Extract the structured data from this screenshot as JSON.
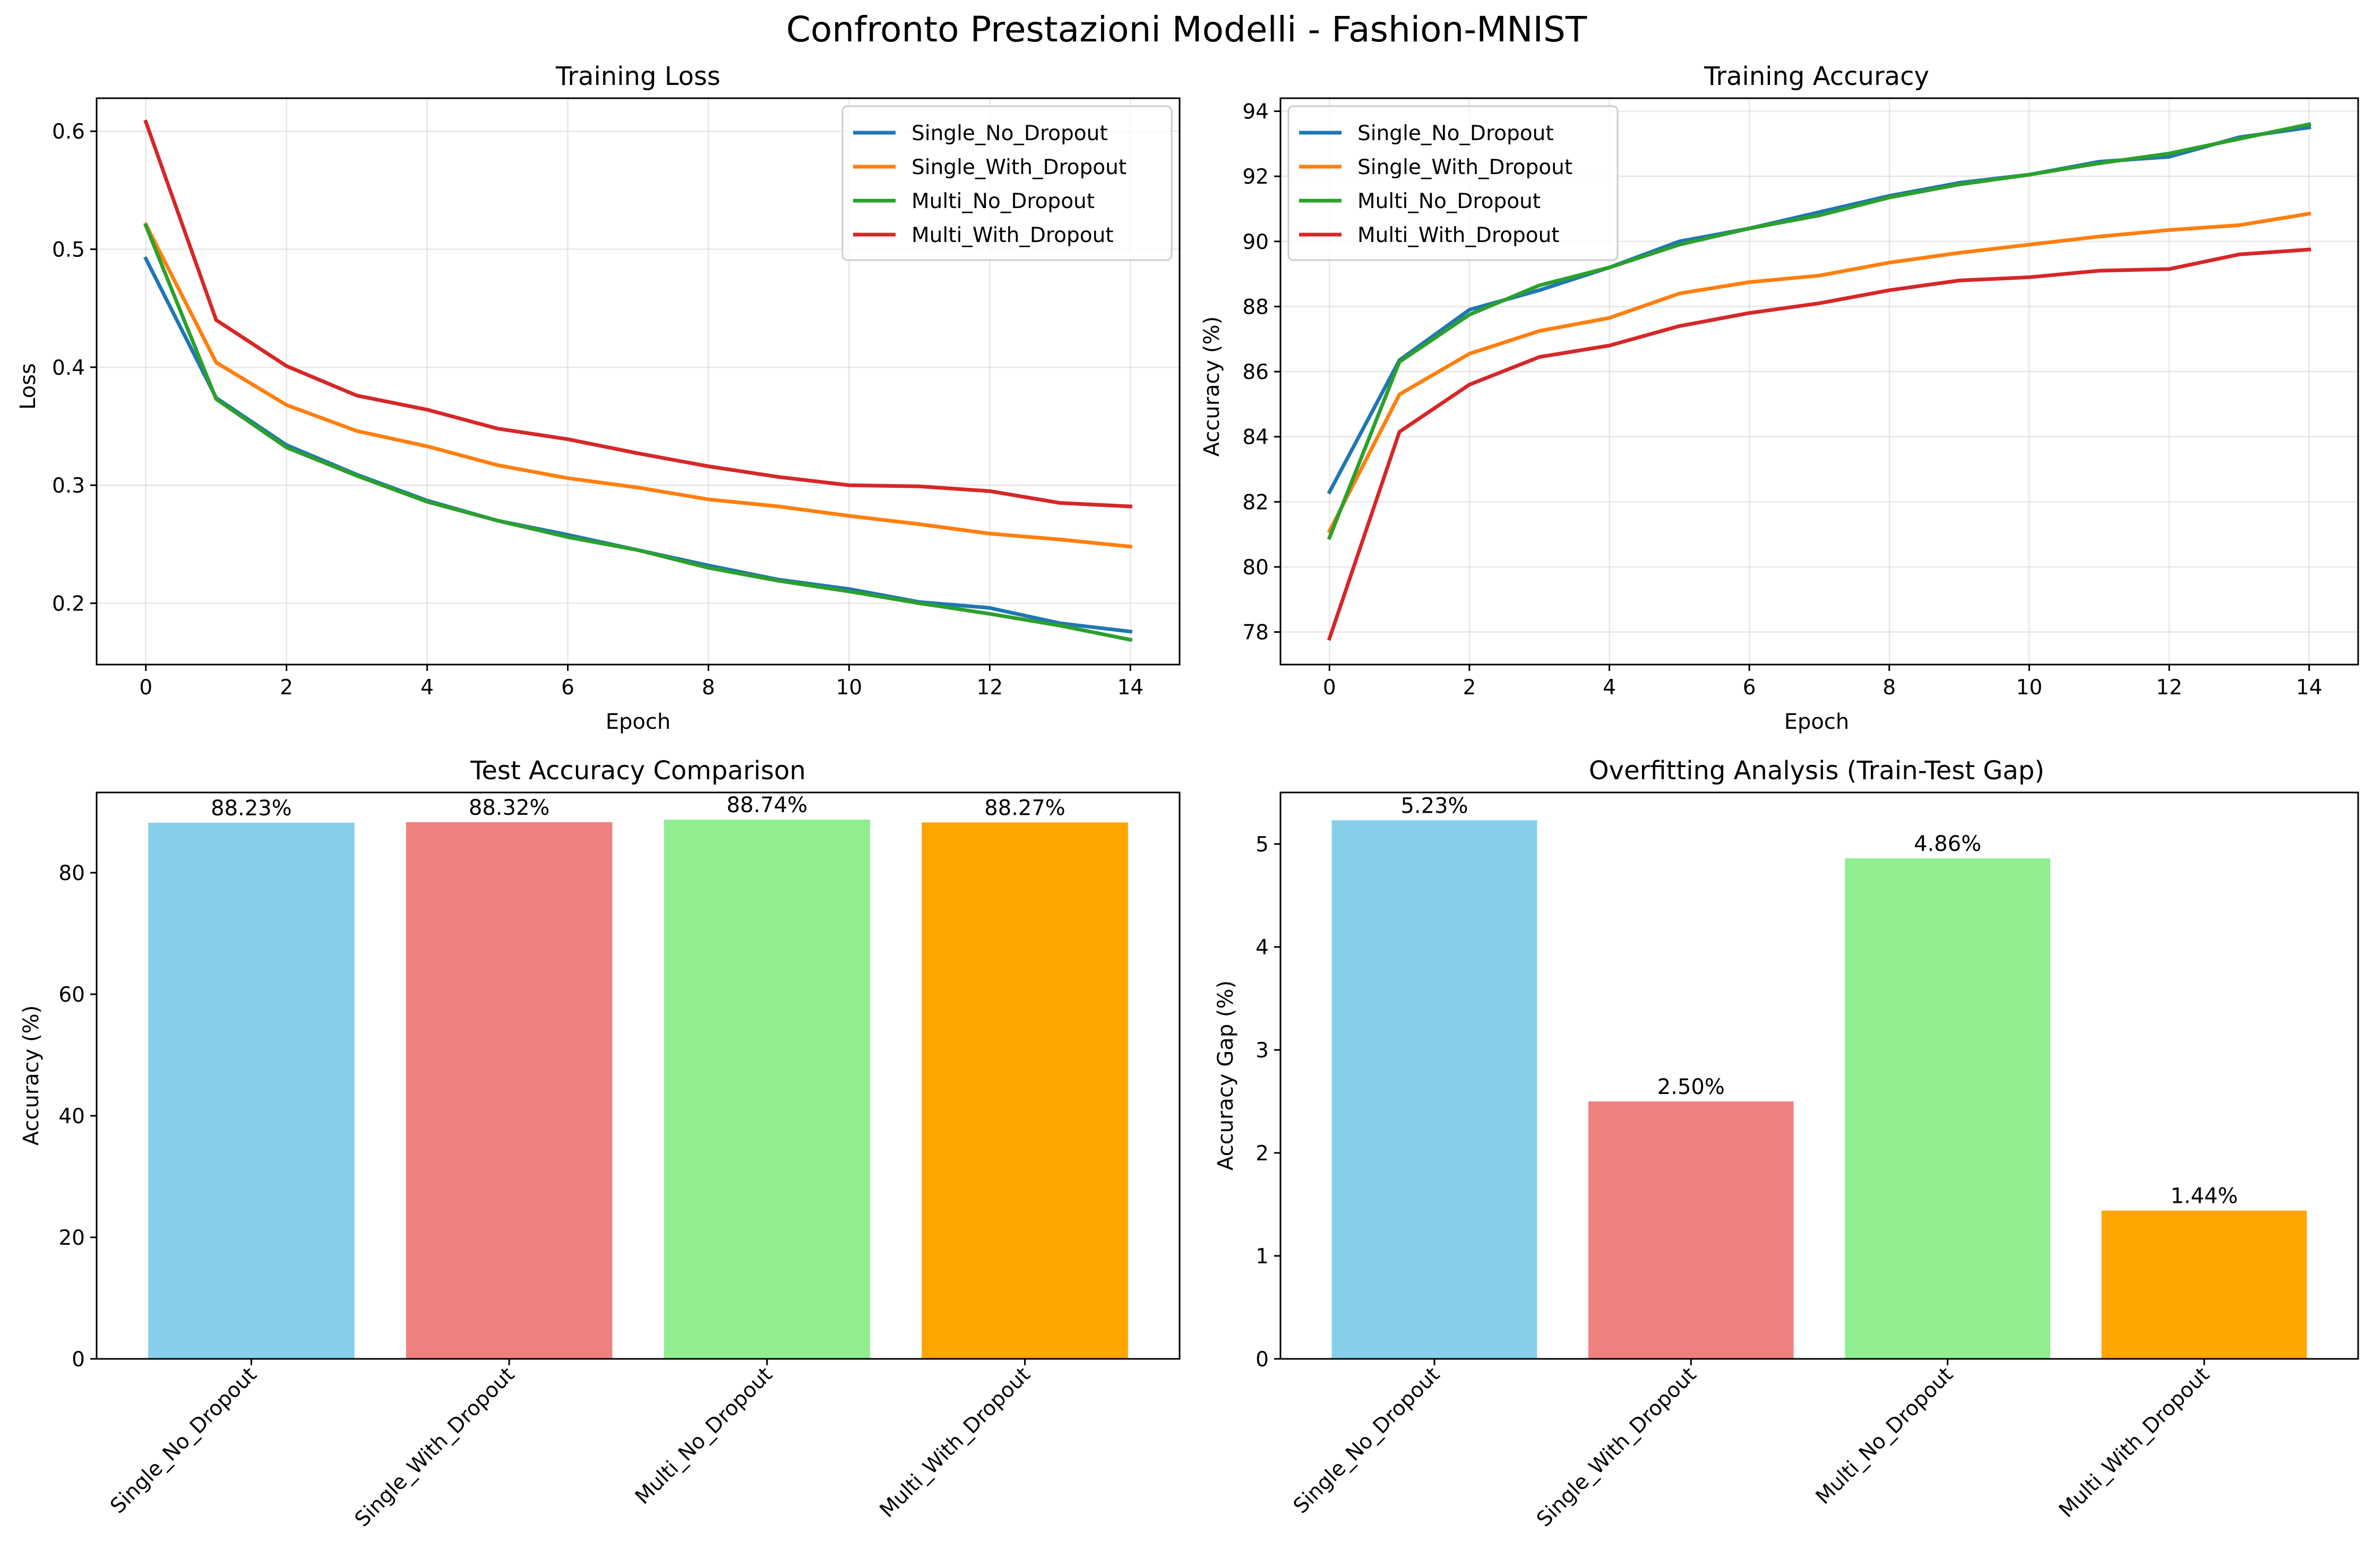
{
  "figure": {
    "title": "Confronto Prestazioni Modelli - Fashion-MNIST"
  },
  "chart_data": [
    {
      "type": "line",
      "title": "Training Loss",
      "xlabel": "Epoch",
      "ylabel": "Loss",
      "x": [
        0,
        1,
        2,
        3,
        4,
        5,
        6,
        7,
        8,
        9,
        10,
        11,
        12,
        13,
        14
      ],
      "xlim": [
        -0.7,
        14.7
      ],
      "ylim": [
        0.148,
        0.628
      ],
      "xticks": [
        0,
        2,
        4,
        6,
        8,
        10,
        12,
        14
      ],
      "yticks": [
        0.2,
        0.3,
        0.4,
        0.5,
        0.6
      ],
      "ytick_labels": [
        "0.2",
        "0.3",
        "0.4",
        "0.5",
        "0.6"
      ],
      "grid": true,
      "legend_position": "upper right",
      "series": [
        {
          "name": "Single_No_Dropout",
          "color": "#1f77b4",
          "values": [
            0.492,
            0.374,
            0.334,
            0.309,
            0.287,
            0.27,
            0.258,
            0.245,
            0.232,
            0.22,
            0.212,
            0.201,
            0.196,
            0.183,
            0.176
          ]
        },
        {
          "name": "Single_With_Dropout",
          "color": "#ff7f0e",
          "values": [
            0.521,
            0.404,
            0.368,
            0.346,
            0.333,
            0.317,
            0.306,
            0.298,
            0.288,
            0.282,
            0.274,
            0.267,
            0.259,
            0.254,
            0.248
          ]
        },
        {
          "name": "Multi_No_Dropout",
          "color": "#2ca02c",
          "values": [
            0.52,
            0.373,
            0.332,
            0.308,
            0.286,
            0.27,
            0.256,
            0.245,
            0.23,
            0.219,
            0.21,
            0.2,
            0.191,
            0.181,
            0.169
          ]
        },
        {
          "name": "Multi_With_Dropout",
          "color": "#d62728",
          "values": [
            0.608,
            0.44,
            0.401,
            0.376,
            0.364,
            0.348,
            0.339,
            0.327,
            0.316,
            0.307,
            0.3,
            0.299,
            0.295,
            0.285,
            0.282
          ]
        }
      ]
    },
    {
      "type": "line",
      "title": "Training Accuracy",
      "xlabel": "Epoch",
      "ylabel": "Accuracy (%)",
      "x": [
        0,
        1,
        2,
        3,
        4,
        5,
        6,
        7,
        8,
        9,
        10,
        11,
        12,
        13,
        14
      ],
      "xlim": [
        -0.7,
        14.7
      ],
      "ylim": [
        77.0,
        94.4
      ],
      "xticks": [
        0,
        2,
        4,
        6,
        8,
        10,
        12,
        14
      ],
      "yticks": [
        78,
        80,
        82,
        84,
        86,
        88,
        90,
        92,
        94
      ],
      "ytick_labels": [
        "78",
        "80",
        "82",
        "84",
        "86",
        "88",
        "90",
        "92",
        "94"
      ],
      "grid": true,
      "legend_position": "upper left",
      "series": [
        {
          "name": "Single_No_Dropout",
          "color": "#1f77b4",
          "values": [
            82.3,
            86.35,
            87.9,
            88.5,
            89.2,
            90.0,
            90.4,
            90.9,
            91.4,
            91.8,
            92.05,
            92.45,
            92.6,
            93.2,
            93.5
          ]
        },
        {
          "name": "Single_With_Dropout",
          "color": "#ff7f0e",
          "values": [
            81.1,
            85.3,
            86.55,
            87.25,
            87.65,
            88.4,
            88.75,
            88.95,
            89.35,
            89.65,
            89.9,
            90.15,
            90.35,
            90.5,
            90.85
          ]
        },
        {
          "name": "Multi_No_Dropout",
          "color": "#2ca02c",
          "values": [
            80.9,
            86.3,
            87.75,
            88.65,
            89.2,
            89.9,
            90.4,
            90.8,
            91.35,
            91.75,
            92.05,
            92.4,
            92.7,
            93.15,
            93.6
          ]
        },
        {
          "name": "Multi_With_Dropout",
          "color": "#d62728",
          "values": [
            77.8,
            84.15,
            85.6,
            86.45,
            86.8,
            87.4,
            87.8,
            88.1,
            88.5,
            88.8,
            88.9,
            89.1,
            89.15,
            89.6,
            89.75
          ]
        }
      ]
    },
    {
      "type": "bar",
      "title": "Test Accuracy Comparison",
      "xlabel": "",
      "ylabel": "Accuracy (%)",
      "categories": [
        "Single_No_Dropout",
        "Single_With_Dropout",
        "Multi_No_Dropout",
        "Multi_With_Dropout"
      ],
      "values": [
        88.23,
        88.32,
        88.74,
        88.27
      ],
      "labels": [
        "88.23%",
        "88.32%",
        "88.74%",
        "88.27%"
      ],
      "colors": [
        "#87ceeb",
        "#f08080",
        "#90ee90",
        "#ffa500"
      ],
      "ylim": [
        0,
        93.2
      ],
      "yticks": [
        0,
        20,
        40,
        60,
        80
      ],
      "ytick_labels": [
        "0",
        "20",
        "40",
        "60",
        "80"
      ],
      "grid": false
    },
    {
      "type": "bar",
      "title": "Overfitting Analysis (Train-Test Gap)",
      "xlabel": "",
      "ylabel": "Accuracy Gap (%)",
      "categories": [
        "Single_No_Dropout",
        "Single_With_Dropout",
        "Multi_No_Dropout",
        "Multi_With_Dropout"
      ],
      "values": [
        5.23,
        2.5,
        4.86,
        1.44
      ],
      "labels": [
        "5.23%",
        "2.50%",
        "4.86%",
        "1.44%"
      ],
      "colors": [
        "#87ceeb",
        "#f08080",
        "#90ee90",
        "#ffa500"
      ],
      "ylim": [
        0,
        5.5
      ],
      "yticks": [
        0,
        1,
        2,
        3,
        4,
        5
      ],
      "ytick_labels": [
        "0",
        "1",
        "2",
        "3",
        "4",
        "5"
      ],
      "grid": false
    }
  ]
}
